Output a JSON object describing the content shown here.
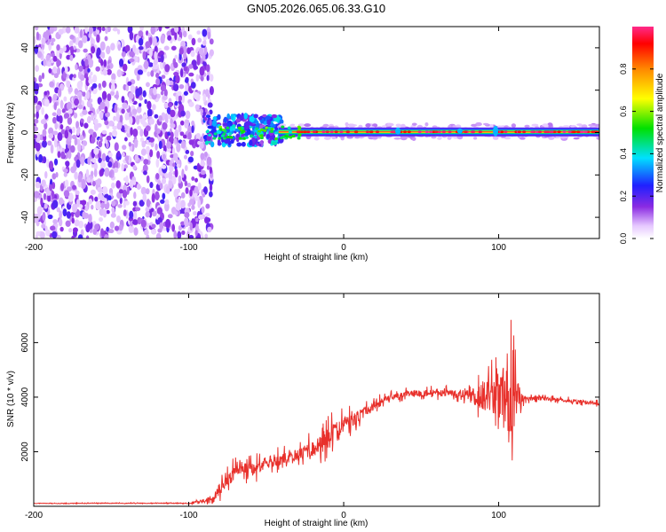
{
  "title": "GN05.2026.065.06.33.G10",
  "chart_data": [
    {
      "type": "heatmap",
      "xlabel": "Height of straight line (km)",
      "ylabel": "Frequency (Hz)",
      "xlim": [
        -200,
        165
      ],
      "ylim": [
        -50,
        50
      ],
      "xticks": [
        -200,
        -100,
        0,
        100
      ],
      "yticks": [
        -40,
        -20,
        0,
        20,
        40
      ],
      "colorbar": {
        "label": "Normalized spectral amplitude",
        "range": [
          0,
          1
        ],
        "ticks": [
          "0.0",
          "0.2",
          "0.4",
          "0.6",
          "0.8"
        ]
      },
      "regions": [
        {
          "name": "noise",
          "x": [
            -200,
            -85
          ],
          "y": [
            -50,
            50
          ],
          "amplitude": 0.15
        },
        {
          "name": "transition",
          "x": [
            -90,
            -40
          ],
          "y": [
            -8,
            10
          ],
          "amplitude": 0.35
        },
        {
          "name": "signal",
          "x": [
            -40,
            165
          ],
          "center_hz": 0.3,
          "amplitude": 0.95
        }
      ]
    },
    {
      "type": "line",
      "xlabel": "Height of straight line (km)",
      "ylabel": "SNR (10 * v/v)",
      "xlim": [
        -200,
        165
      ],
      "ylim": [
        0,
        7800
      ],
      "xticks": [
        -200,
        -100,
        0,
        100
      ],
      "yticks": [
        2000,
        4000,
        6000
      ],
      "color": "#e8312c",
      "series": [
        {
          "x": [
            -200,
            -180,
            -160,
            -140,
            -120,
            -100,
            -85,
            -80,
            -75,
            -70,
            -65,
            -60,
            -55,
            -50,
            -45,
            -40,
            -35,
            -30,
            -25,
            -20,
            -15,
            -10,
            -5,
            0,
            5,
            10,
            15,
            20,
            25,
            30,
            40,
            50,
            60,
            70,
            80,
            85,
            90,
            95,
            100,
            105,
            108,
            110,
            115,
            120,
            130,
            140,
            150,
            160,
            165
          ],
          "y": [
            110,
            105,
            115,
            110,
            115,
            110,
            250,
            600,
            950,
            1300,
            1350,
            1350,
            1400,
            1600,
            1700,
            1700,
            1800,
            1900,
            2000,
            2100,
            2300,
            2500,
            2700,
            2950,
            3100,
            3300,
            3500,
            3700,
            3850,
            4000,
            4100,
            4150,
            4150,
            4150,
            4100,
            4050,
            4050,
            4050,
            4000,
            4000,
            4000,
            3950,
            3950,
            3950,
            3950,
            3900,
            3850,
            3800,
            3750
          ],
          "noise": [
            20,
            20,
            20,
            25,
            25,
            30,
            200,
            450,
            550,
            600,
            650,
            600,
            550,
            500,
            500,
            500,
            450,
            400,
            700,
            600,
            800,
            900,
            900,
            800,
            600,
            500,
            400,
            350,
            300,
            250,
            250,
            300,
            250,
            300,
            400,
            800,
            1200,
            1600,
            2000,
            2800,
            3000,
            2500,
            300,
            200,
            150,
            150,
            150,
            150,
            150
          ]
        }
      ]
    }
  ]
}
